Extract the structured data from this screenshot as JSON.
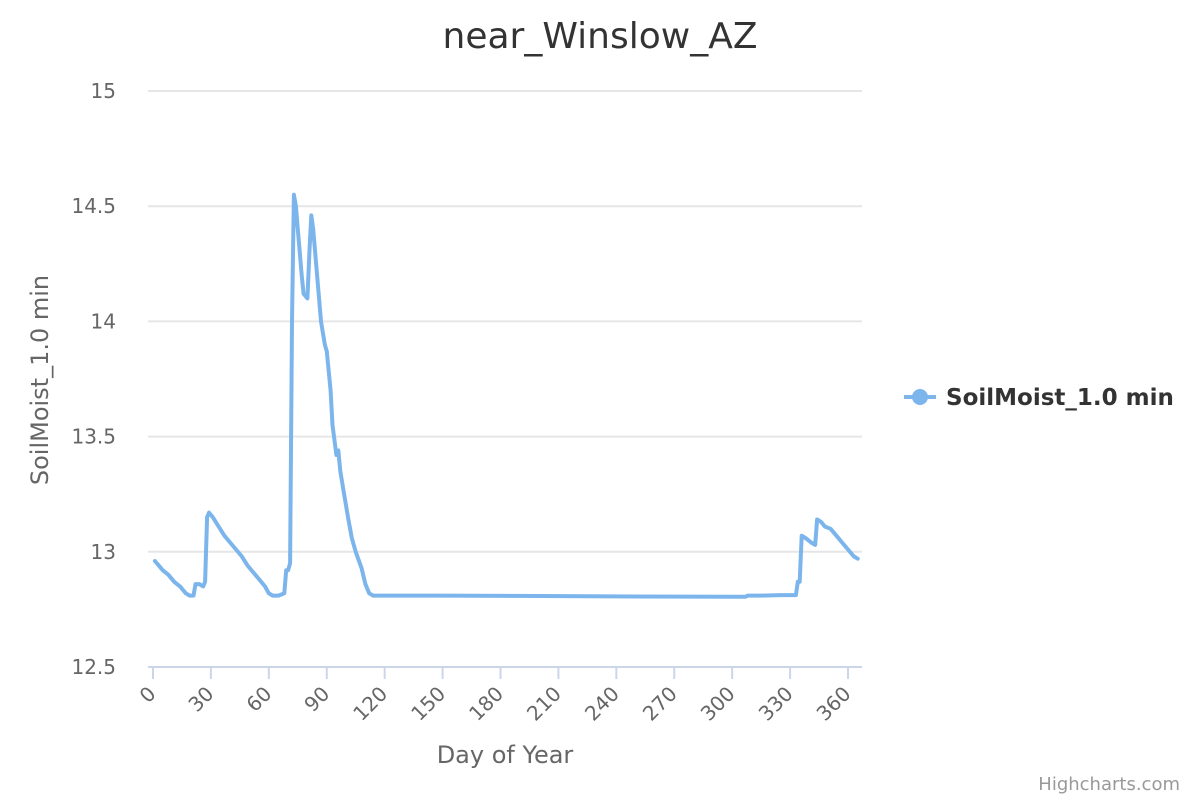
{
  "chart_data": {
    "type": "line",
    "title": "near_Winslow_AZ",
    "xlabel": "Day of Year",
    "ylabel": "SoilMoist_1.0 min",
    "xlim": [
      0,
      365
    ],
    "ylim": [
      12.5,
      15
    ],
    "x_ticks": [
      0,
      30,
      60,
      90,
      120,
      150,
      180,
      210,
      240,
      270,
      300,
      330,
      360
    ],
    "y_ticks": [
      12.5,
      13,
      13.5,
      14,
      14.5,
      15
    ],
    "grid": true,
    "legend_position": "right",
    "series": [
      {
        "name": "SoilMoist_1.0 min",
        "color": "#7cb5ec",
        "points": [
          [
            1,
            12.96
          ],
          [
            3,
            12.94
          ],
          [
            5,
            12.92
          ],
          [
            8,
            12.9
          ],
          [
            11,
            12.87
          ],
          [
            14,
            12.85
          ],
          [
            17,
            12.82
          ],
          [
            19,
            12.81
          ],
          [
            21,
            12.81
          ],
          [
            22,
            12.86
          ],
          [
            24,
            12.86
          ],
          [
            26,
            12.85
          ],
          [
            27,
            12.87
          ],
          [
            28,
            13.15
          ],
          [
            29,
            13.17
          ],
          [
            31,
            13.15
          ],
          [
            34,
            13.11
          ],
          [
            37,
            13.07
          ],
          [
            40,
            13.04
          ],
          [
            43,
            13.01
          ],
          [
            46,
            12.98
          ],
          [
            49,
            12.94
          ],
          [
            52,
            12.91
          ],
          [
            55,
            12.88
          ],
          [
            58,
            12.85
          ],
          [
            60,
            12.82
          ],
          [
            62,
            12.81
          ],
          [
            65,
            12.81
          ],
          [
            68,
            12.82
          ],
          [
            69,
            12.92
          ],
          [
            70,
            12.92
          ],
          [
            71,
            12.95
          ],
          [
            72,
            14.0
          ],
          [
            73,
            14.55
          ],
          [
            74,
            14.5
          ],
          [
            75,
            14.4
          ],
          [
            77,
            14.2
          ],
          [
            78,
            14.12
          ],
          [
            80,
            14.1
          ],
          [
            81,
            14.3
          ],
          [
            82,
            14.46
          ],
          [
            83,
            14.4
          ],
          [
            85,
            14.2
          ],
          [
            87,
            14.0
          ],
          [
            89,
            13.9
          ],
          [
            90,
            13.87
          ],
          [
            92,
            13.7
          ],
          [
            93,
            13.55
          ],
          [
            95,
            13.42
          ],
          [
            96,
            13.44
          ],
          [
            97,
            13.35
          ],
          [
            99,
            13.25
          ],
          [
            101,
            13.15
          ],
          [
            103,
            13.06
          ],
          [
            105,
            13.0
          ],
          [
            108,
            12.93
          ],
          [
            110,
            12.86
          ],
          [
            112,
            12.82
          ],
          [
            114,
            12.81
          ],
          [
            150,
            12.81
          ],
          [
            200,
            12.808
          ],
          [
            250,
            12.806
          ],
          [
            300,
            12.805
          ],
          [
            307,
            12.805
          ],
          [
            308,
            12.81
          ],
          [
            315,
            12.81
          ],
          [
            325,
            12.812
          ],
          [
            333,
            12.812
          ],
          [
            334,
            12.87
          ],
          [
            335,
            12.87
          ],
          [
            336,
            13.07
          ],
          [
            338,
            13.06
          ],
          [
            341,
            13.04
          ],
          [
            343,
            13.03
          ],
          [
            344,
            13.14
          ],
          [
            346,
            13.13
          ],
          [
            348,
            13.11
          ],
          [
            351,
            13.1
          ],
          [
            354,
            13.07
          ],
          [
            357,
            13.04
          ],
          [
            360,
            13.01
          ],
          [
            363,
            12.98
          ],
          [
            365,
            12.97
          ]
        ]
      }
    ]
  },
  "credits": "Highcharts.com"
}
